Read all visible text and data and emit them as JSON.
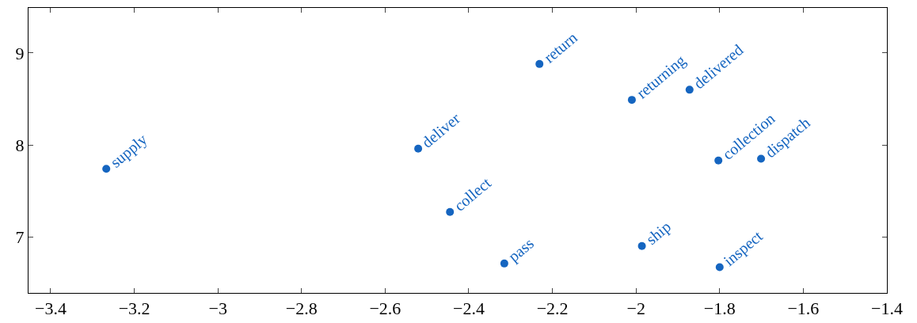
{
  "chart_data": {
    "type": "scatter",
    "color": "#1565c0",
    "marker": "circle",
    "grid": false,
    "x": [
      -3.267,
      -2.521,
      -2.445,
      -2.315,
      -2.231,
      -2.01,
      -1.872,
      -1.986,
      -1.803,
      -1.701,
      -1.8
    ],
    "values": [
      7.74,
      7.96,
      7.27,
      6.71,
      8.88,
      8.49,
      8.6,
      6.9,
      7.83,
      7.85,
      6.67
    ],
    "annotations": [
      {
        "text": "supply",
        "x": -3.267,
        "y": 7.74
      },
      {
        "text": "deliver",
        "x": -2.521,
        "y": 7.96
      },
      {
        "text": "collect",
        "x": -2.445,
        "y": 7.27
      },
      {
        "text": "pass",
        "x": -2.315,
        "y": 6.71
      },
      {
        "text": "return",
        "x": -2.231,
        "y": 8.88
      },
      {
        "text": "returning",
        "x": -2.01,
        "y": 8.49
      },
      {
        "text": "delivered",
        "x": -1.872,
        "y": 8.6
      },
      {
        "text": "ship",
        "x": -1.986,
        "y": 6.9
      },
      {
        "text": "collection",
        "x": -1.803,
        "y": 7.83
      },
      {
        "text": "dispatch",
        "x": -1.701,
        "y": 7.85
      },
      {
        "text": "inspect",
        "x": -1.8,
        "y": 6.67
      }
    ],
    "xlim": [
      -3.453,
      -1.4
    ],
    "ylim": [
      6.39,
      9.49
    ],
    "xticks": [
      {
        "value": -3.4,
        "label": "−3.4"
      },
      {
        "value": -3.2,
        "label": "−3.2"
      },
      {
        "value": -3,
        "label": "−3"
      },
      {
        "value": -2.8,
        "label": "−2.8"
      },
      {
        "value": -2.6,
        "label": "−2.6"
      },
      {
        "value": -2.4,
        "label": "−2.4"
      },
      {
        "value": -2.2,
        "label": "−2.2"
      },
      {
        "value": -2,
        "label": "−2"
      },
      {
        "value": -1.8,
        "label": "−1.8"
      },
      {
        "value": -1.6,
        "label": "−1.6"
      },
      {
        "value": -1.4,
        "label": "−1.4"
      }
    ],
    "yticks": [
      7,
      8,
      9
    ]
  }
}
